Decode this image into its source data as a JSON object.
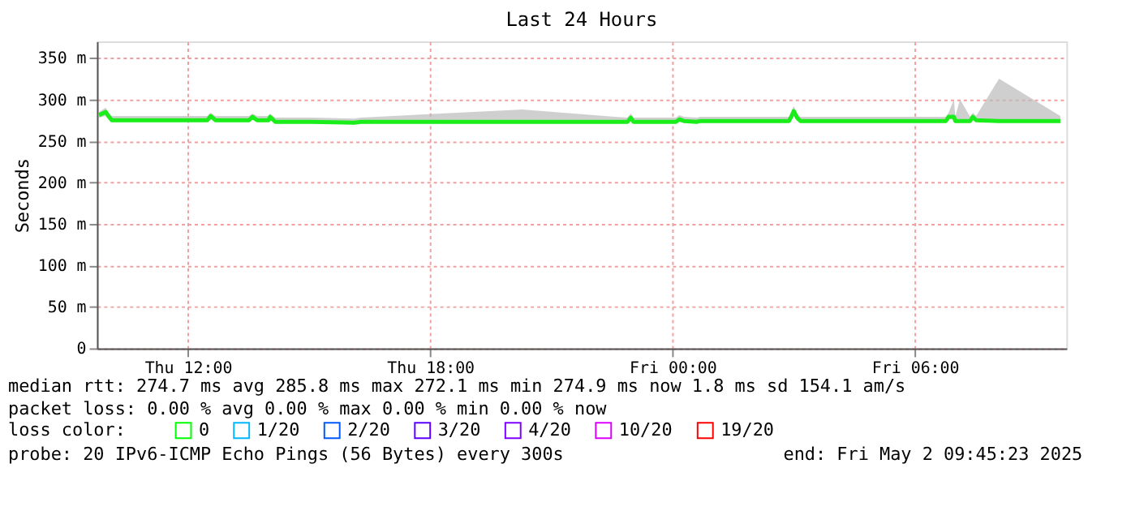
{
  "chart_data": {
    "type": "line",
    "title": "Last 24 Hours",
    "ylabel": "Seconds",
    "xlim": [
      "2025-05-01T09:45",
      "2025-05-02T09:45"
    ],
    "xticks": [
      {
        "value": "2025-05-01T12:00",
        "label": "Thu 12:00"
      },
      {
        "value": "2025-05-01T18:00",
        "label": "Thu 18:00"
      },
      {
        "value": "2025-05-02T00:00",
        "label": "Fri 00:00"
      },
      {
        "value": "2025-05-02T06:00",
        "label": "Fri 06:00"
      }
    ],
    "ylim": [
      0,
      370
    ],
    "yticks": [
      0,
      {
        "value": 50,
        "label": "50 m"
      },
      {
        "value": 100,
        "label": "100 m"
      },
      {
        "value": 150,
        "label": "150 m"
      },
      {
        "value": 200,
        "label": "200 m"
      },
      {
        "value": 250,
        "label": "250 m"
      },
      {
        "value": 300,
        "label": "300 m"
      },
      {
        "value": 350,
        "label": "350 m"
      }
    ],
    "grid": true,
    "legend": "bottom",
    "legend_title": "loss color:",
    "series": [
      {
        "color": "#1aee1a",
        "x": [
          "2025-05-01T09:48",
          "2025-05-01T09:58",
          "2025-05-01T10:02",
          "2025-05-01T10:07",
          "2025-05-01T12:29",
          "2025-05-01T12:34",
          "2025-05-01T12:41",
          "2025-05-01T13:31",
          "2025-05-01T13:36",
          "2025-05-01T13:43",
          "2025-05-01T14:00",
          "2025-05-01T14:02",
          "2025-05-01T14:10",
          "2025-05-01T15:05",
          "2025-05-01T16:07",
          "2025-05-01T16:17",
          "2025-05-01T20:17",
          "2025-05-01T22:53",
          "2025-05-01T22:58",
          "2025-05-01T23:02",
          "2025-05-02T00:05",
          "2025-05-02T00:10",
          "2025-05-02T00:17",
          "2025-05-02T00:36",
          "2025-05-02T00:41",
          "2025-05-02T02:53",
          "2025-05-02T02:58",
          "2025-05-02T03:00",
          "2025-05-02T03:05",
          "2025-05-02T03:10",
          "2025-05-02T06:46",
          "2025-05-02T06:50",
          "2025-05-02T06:58",
          "2025-05-02T07:00",
          "2025-05-02T07:07",
          "2025-05-02T07:22",
          "2025-05-02T07:26",
          "2025-05-02T07:31",
          "2025-05-02T08:05",
          "2025-05-02T09:36"
        ],
        "values": [
          281,
          285,
          280,
          275,
          275,
          280,
          275,
          275,
          279,
          275,
          275,
          279,
          273,
          273,
          272,
          273,
          273,
          273,
          278,
          273,
          273,
          276,
          274,
          273,
          274,
          274,
          282,
          286,
          278,
          274,
          274,
          279,
          279,
          274,
          274,
          274,
          279,
          275,
          274,
          274
        ],
        "lower": [
          278,
          280,
          277,
          273,
          273,
          277,
          273,
          273,
          276,
          273,
          273,
          276,
          271,
          271,
          270,
          271,
          271,
          271,
          275,
          271,
          271,
          273,
          272,
          271,
          272,
          272,
          278,
          282,
          275,
          272,
          272,
          276,
          276,
          272,
          272,
          272,
          276,
          273,
          272,
          272
        ],
        "upper": [
          285,
          290,
          284,
          280,
          280,
          284,
          280,
          280,
          283,
          280,
          280,
          283,
          278,
          278,
          277,
          278,
          288,
          278,
          283,
          278,
          278,
          281,
          279,
          278,
          279,
          279,
          288,
          292,
          283,
          279,
          279,
          284,
          300,
          279,
          300,
          279,
          284,
          280,
          325,
          280
        ]
      },
      {
        "name": "0",
        "color": "#00ff00"
      },
      {
        "name": "1/20",
        "color": "#00b8ff"
      },
      {
        "name": "2/20",
        "color": "#0059ff"
      },
      {
        "name": "3/20",
        "color": "#5e00ff"
      },
      {
        "name": "4/20",
        "color": "#7e00ff"
      },
      {
        "name": "10/20",
        "color": "#dd00ff"
      },
      {
        "name": "19/20",
        "color": "#ff0000"
      }
    ],
    "annotations": [
      "median rtt:  274.7 ms avg  285.8 ms max  272.1 ms min  274.9 ms now  1.8 ms sd  154.1   am/s",
      "packet loss: 0.00 % avg  0.00 % max  0.00 % min  0.00 % now",
      "probe:       20 IPv6-ICMP Echo Pings (56 Bytes) every 300s",
      "end: Fri May  2 09:45:23 2025"
    ]
  }
}
